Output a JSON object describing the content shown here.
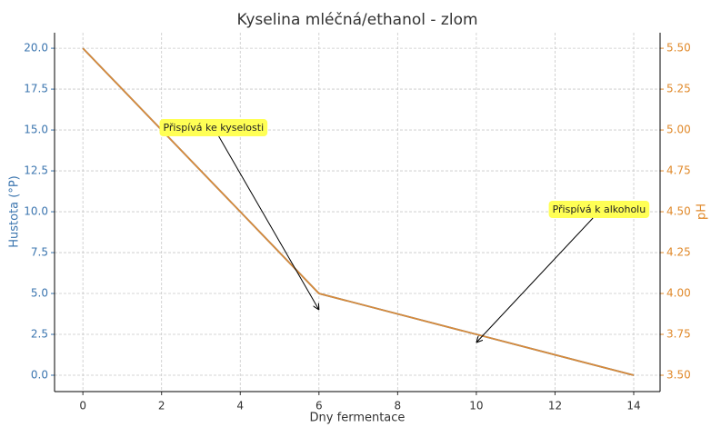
{
  "chart_data": {
    "type": "line",
    "title": "Kyselina mléčná/ethanol - zlom",
    "x_label": "Dny fermentace",
    "y_label": "Hustota (°P)",
    "y2_label": "pH",
    "x": [
      0,
      6,
      14
    ],
    "series": [
      {
        "color": "#1f77b4",
        "values": [
          20,
          5,
          0
        ]
      },
      {
        "color": "#d98a3a",
        "values": [
          5.5,
          4.0,
          3.5
        ],
        "axis": "y2"
      }
    ],
    "xlim": [
      -0.72,
      14.67
    ],
    "xticks": [
      0,
      2,
      4,
      6,
      8,
      10,
      12,
      14
    ],
    "ylim": [
      -1,
      20.95
    ],
    "yticks": [
      {
        "value": 0,
        "label": "0.0"
      },
      2.5,
      {
        "value": 5,
        "label": "5.0"
      },
      7.5,
      {
        "value": 10,
        "label": "10.0"
      },
      12.5,
      {
        "value": 15,
        "label": "15.0"
      },
      17.5,
      {
        "value": 20,
        "label": "20.0"
      }
    ],
    "y2lim": [
      3.4,
      5.595
    ],
    "y2ticks": [
      {
        "value": 3.5,
        "label": "3.50"
      },
      3.75,
      {
        "value": 4,
        "label": "4.00"
      },
      4.25,
      {
        "value": 4.5,
        "label": "4.50"
      },
      4.75,
      {
        "value": 5,
        "label": "5.00"
      },
      5.25,
      {
        "value": 5.5,
        "label": "5.50"
      }
    ],
    "grid": true,
    "y_color": "#3b75af",
    "y2_color": "#e0892a",
    "annotations": [
      {
        "text": "Přispívá ke kyselosti",
        "xy": [
          6,
          4
        ]
      },
      {
        "text": "Přispívá k alkoholu",
        "xy": [
          10,
          2
        ]
      }
    ]
  }
}
